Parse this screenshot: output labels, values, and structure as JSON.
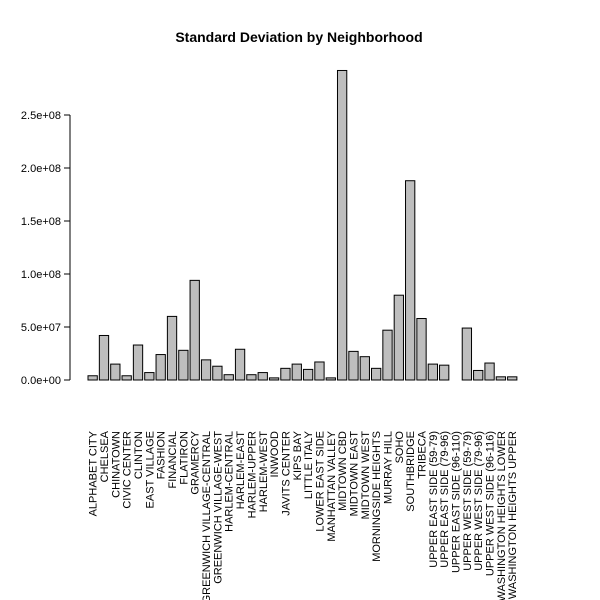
{
  "chart_data": {
    "type": "bar",
    "title": "Standard Deviation by Neighborhood",
    "xlabel": "",
    "ylabel": "",
    "ylim": [
      0,
      290000000
    ],
    "yticks": [
      0,
      50000000,
      100000000,
      150000000,
      200000000,
      250000000
    ],
    "ytick_labels": [
      "0.0e+00",
      "5.0e+07",
      "1.0e+08",
      "1.5e+08",
      "2.0e+08",
      "2.5e+08"
    ],
    "categories": [
      "ALPHABET CITY",
      "CHELSEA",
      "CHINATOWN",
      "CIVIC CENTER",
      "CLINTON",
      "EAST VILLAGE",
      "FASHION",
      "FINANCIAL",
      "FLATIRON",
      "GRAMERCY",
      "GREENWICH VILLAGE-CENTRAL",
      "GREENWICH VILLAGE-WEST",
      "HARLEM-CENTRAL",
      "HARLEM-EAST",
      "HARLEM-UPPER",
      "HARLEM-WEST",
      "INWOOD",
      "JAVITS CENTER",
      "KIPS BAY",
      "LITTLE ITALY",
      "LOWER EAST SIDE",
      "MANHATTAN VALLEY",
      "MIDTOWN CBD",
      "MIDTOWN EAST",
      "MIDTOWN WEST",
      "MORNINGSIDE HEIGHTS",
      "MURRAY HILL",
      "SOHO",
      "SOUTHBRIDGE",
      "TRIBECA",
      "UPPER EAST SIDE (59-79)",
      "UPPER EAST SIDE (79-96)",
      "UPPER EAST SIDE (96-110)",
      "UPPER WEST SIDE (59-79)",
      "UPPER WEST SIDE (79-96)",
      "UPPER WEST SIDE (96-116)",
      "WASHINGTON HEIGHTS LOWER",
      "WASHINGTON HEIGHTS UPPER"
    ],
    "values": [
      4000000,
      42000000,
      15000000,
      4000000,
      33000000,
      7000000,
      24000000,
      60000000,
      28000000,
      94000000,
      19000000,
      13000000,
      5000000,
      29000000,
      5000000,
      7000000,
      2000000,
      11000000,
      15000000,
      10000000,
      17000000,
      2000000,
      292000000,
      27000000,
      22000000,
      11000000,
      47000000,
      80000000,
      188000000,
      58000000,
      15000000,
      14000000,
      0,
      49000000,
      9000000,
      16000000,
      3000000,
      3000000
    ],
    "grid": false,
    "legend": "none"
  }
}
